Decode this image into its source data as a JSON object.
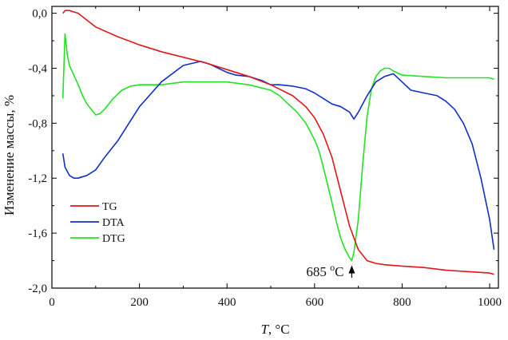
{
  "chart_data": {
    "type": "line",
    "xlabel_var": "T",
    "xlabel_unit": ", °C",
    "ylabel": "Изменение массы, %",
    "xlim": [
      0,
      1020
    ],
    "ylim": [
      -2.0,
      0.05
    ],
    "x_ticks": [
      0,
      200,
      400,
      600,
      800,
      1000
    ],
    "x_tick_labels": [
      "0",
      "200",
      "400",
      "600",
      "800",
      "1000"
    ],
    "y_ticks": [
      0.0,
      -0.4,
      -0.8,
      -1.2,
      -1.6,
      -2.0
    ],
    "y_tick_labels": [
      "0,0",
      "-0,4",
      "-0,8",
      "-1,2",
      "-1,6",
      "-2,0"
    ],
    "legend_position": "lower-left",
    "series": [
      {
        "name": "TG",
        "color": "#e01818",
        "x": [
          25,
          30,
          40,
          60,
          80,
          100,
          150,
          200,
          250,
          300,
          350,
          400,
          450,
          500,
          550,
          580,
          600,
          620,
          640,
          660,
          680,
          700,
          720,
          740,
          760,
          800,
          850,
          900,
          950,
          1000,
          1010
        ],
        "y": [
          0.0,
          0.02,
          0.02,
          0.0,
          -0.05,
          -0.1,
          -0.17,
          -0.23,
          -0.28,
          -0.32,
          -0.36,
          -0.41,
          -0.46,
          -0.52,
          -0.6,
          -0.68,
          -0.76,
          -0.88,
          -1.05,
          -1.3,
          -1.55,
          -1.72,
          -1.8,
          -1.82,
          -1.83,
          -1.84,
          -1.85,
          -1.87,
          -1.88,
          -1.89,
          -1.9
        ]
      },
      {
        "name": "DTA",
        "color": "#1030c8",
        "x": [
          25,
          30,
          40,
          50,
          60,
          80,
          100,
          120,
          150,
          200,
          250,
          300,
          340,
          360,
          380,
          400,
          420,
          450,
          480,
          500,
          520,
          550,
          580,
          600,
          620,
          640,
          660,
          680,
          690,
          700,
          720,
          740,
          760,
          780,
          800,
          820,
          850,
          880,
          900,
          920,
          940,
          960,
          980,
          1000,
          1010
        ],
        "y": [
          -1.02,
          -1.12,
          -1.18,
          -1.2,
          -1.2,
          -1.18,
          -1.14,
          -1.05,
          -0.93,
          -0.68,
          -0.5,
          -0.38,
          -0.35,
          -0.37,
          -0.4,
          -0.43,
          -0.45,
          -0.46,
          -0.49,
          -0.52,
          -0.52,
          -0.53,
          -0.55,
          -0.58,
          -0.62,
          -0.66,
          -0.68,
          -0.72,
          -0.77,
          -0.72,
          -0.6,
          -0.5,
          -0.46,
          -0.44,
          -0.5,
          -0.56,
          -0.58,
          -0.6,
          -0.64,
          -0.7,
          -0.8,
          -0.95,
          -1.2,
          -1.5,
          -1.72
        ]
      },
      {
        "name": "DTG",
        "color": "#22e222",
        "x": [
          25,
          30,
          35,
          40,
          50,
          60,
          70,
          80,
          90,
          100,
          110,
          120,
          140,
          160,
          180,
          200,
          250,
          300,
          350,
          400,
          450,
          500,
          520,
          540,
          560,
          580,
          600,
          610,
          620,
          630,
          640,
          650,
          660,
          670,
          680,
          685,
          690,
          700,
          710,
          720,
          730,
          740,
          750,
          760,
          770,
          780,
          800,
          850,
          900,
          950,
          1000,
          1010
        ],
        "y": [
          -0.62,
          -0.15,
          -0.3,
          -0.38,
          -0.45,
          -0.52,
          -0.6,
          -0.66,
          -0.7,
          -0.74,
          -0.73,
          -0.7,
          -0.62,
          -0.56,
          -0.53,
          -0.52,
          -0.52,
          -0.5,
          -0.5,
          -0.5,
          -0.52,
          -0.56,
          -0.6,
          -0.66,
          -0.72,
          -0.8,
          -0.92,
          -1.0,
          -1.12,
          -1.25,
          -1.38,
          -1.52,
          -1.64,
          -1.72,
          -1.78,
          -1.8,
          -1.74,
          -1.5,
          -1.1,
          -0.75,
          -0.55,
          -0.46,
          -0.42,
          -0.4,
          -0.4,
          -0.42,
          -0.45,
          -0.46,
          -0.47,
          -0.47,
          -0.47,
          -0.48
        ]
      }
    ],
    "annotation": {
      "text_value": "685 ",
      "text_sup": "o",
      "text_unit": "C",
      "x": 685,
      "y": -1.8
    }
  }
}
